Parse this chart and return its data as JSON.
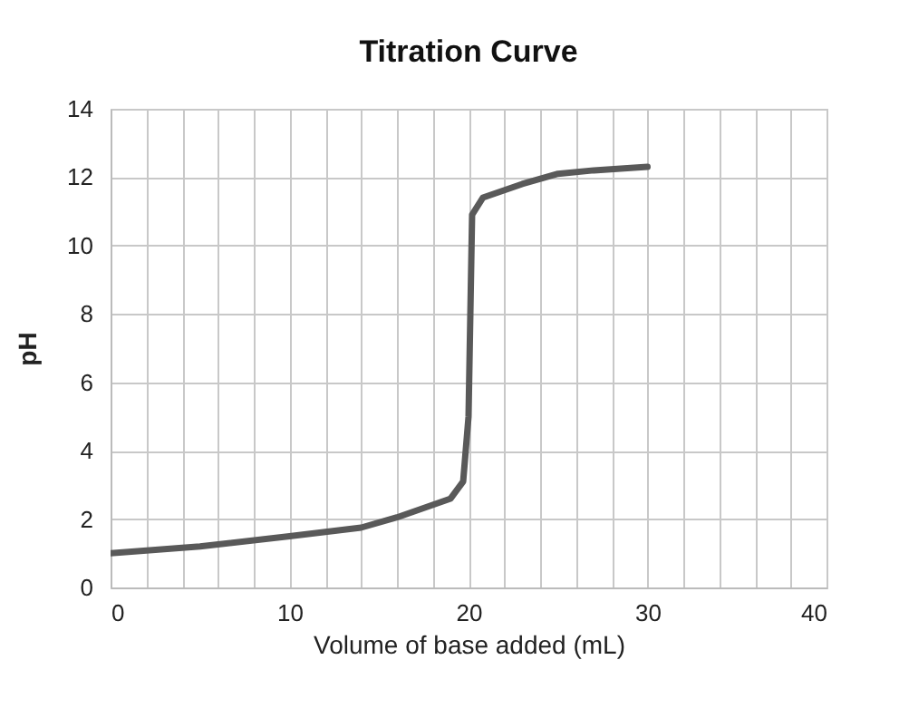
{
  "chart_data": {
    "type": "line",
    "title": "Titration Curve",
    "xlabel": "Volume of base added (mL)",
    "ylabel": "pH",
    "x": [
      0,
      5,
      10,
      14,
      16,
      19,
      19.7,
      20,
      20.2,
      20.8,
      23,
      25,
      27,
      30
    ],
    "series": [
      {
        "color": "#595959",
        "values": [
          1.0,
          1.2,
          1.5,
          1.75,
          2.05,
          2.6,
          3.1,
          5,
          10.9,
          11.4,
          11.8,
          12.1,
          12.2,
          12.3
        ]
      }
    ],
    "xlim": [
      0,
      40
    ],
    "xticks": [
      0,
      {
        "value": 2,
        "label": null
      },
      {
        "value": 4,
        "label": null
      },
      {
        "value": 6,
        "label": null
      },
      {
        "value": 8,
        "label": null
      },
      10,
      {
        "value": 12,
        "label": null
      },
      {
        "value": 14,
        "label": null
      },
      {
        "value": 16,
        "label": null
      },
      {
        "value": 18,
        "label": null
      },
      20,
      {
        "value": 22,
        "label": null
      },
      {
        "value": 24,
        "label": null
      },
      {
        "value": 26,
        "label": null
      },
      {
        "value": 28,
        "label": null
      },
      30,
      {
        "value": 32,
        "label": null
      },
      {
        "value": 34,
        "label": null
      },
      {
        "value": 36,
        "label": null
      },
      {
        "value": 38,
        "label": null
      },
      40
    ],
    "ylim": [
      0,
      14
    ],
    "yticks": [
      0,
      2,
      4,
      6,
      8,
      10,
      12,
      14
    ],
    "grid": true,
    "marker": "none",
    "line_style": "solid"
  }
}
